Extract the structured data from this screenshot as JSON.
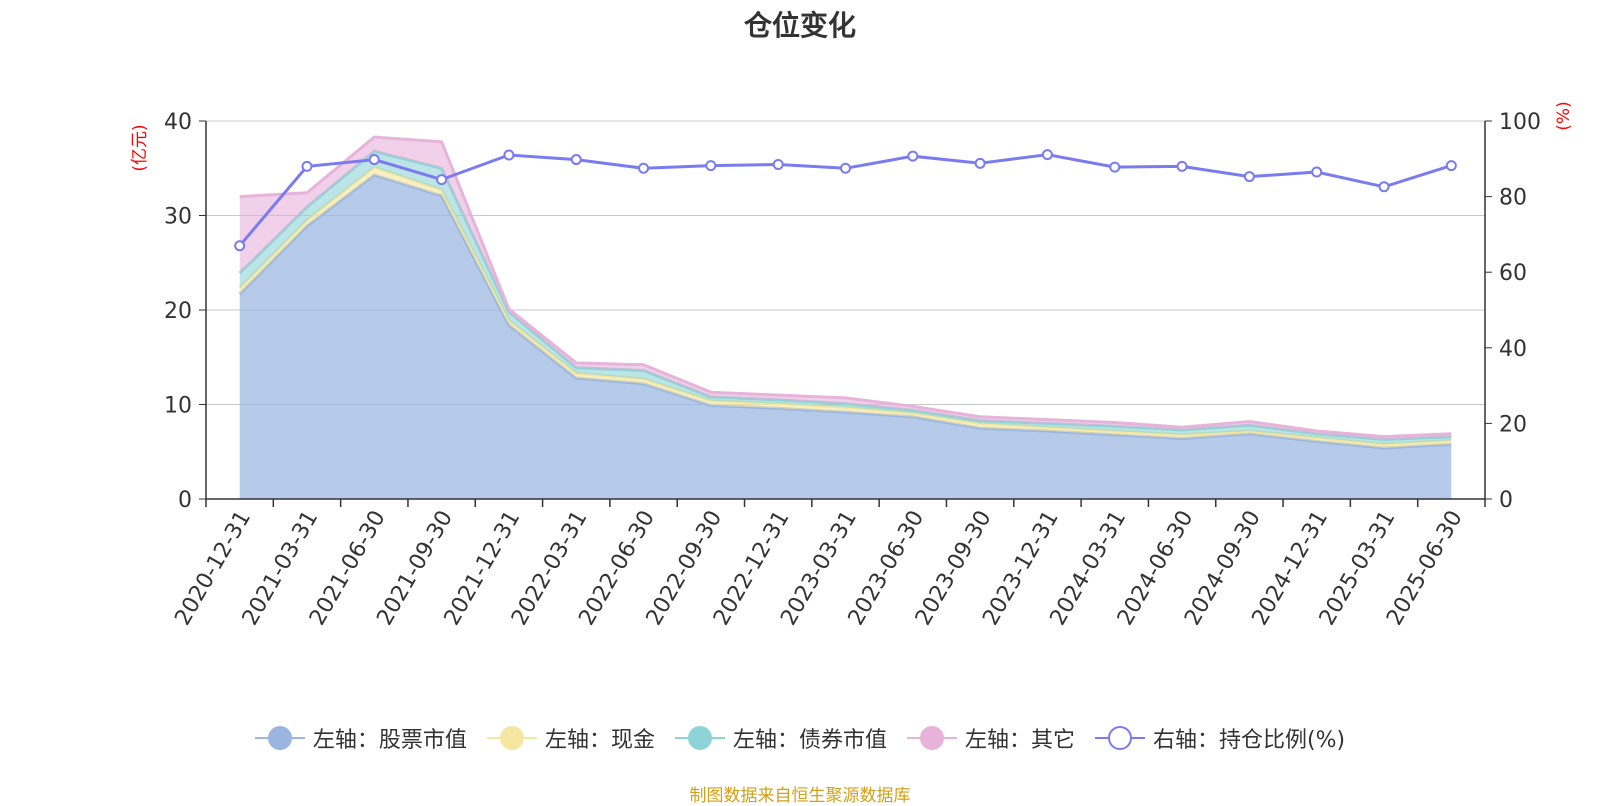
{
  "title": "仓位变化",
  "source_note": "制图数据来自恒生聚源数据库",
  "colors": {
    "stock": "#9ab6e0",
    "cash": "#f5e6a0",
    "bond": "#8ed3d6",
    "other": "#e7b3da",
    "ratio": "#7b7bf0",
    "axis_unit": "#ff0000",
    "grid": "#c8c8c8",
    "source": "#d4a017"
  },
  "chart_data": {
    "type": "area",
    "title": "仓位变化",
    "x": [
      "2020-12-31",
      "2021-03-31",
      "2021-06-30",
      "2021-09-30",
      "2021-12-31",
      "2022-03-31",
      "2022-06-30",
      "2022-09-30",
      "2022-12-31",
      "2023-03-31",
      "2023-06-30",
      "2023-09-30",
      "2023-12-31",
      "2024-03-31",
      "2024-06-30",
      "2024-09-30",
      "2024-12-31",
      "2025-03-31",
      "2025-06-30"
    ],
    "y_left": {
      "unit": "(亿元)",
      "range": [
        0,
        40
      ],
      "ticks": [
        0,
        10,
        20,
        30,
        40
      ]
    },
    "y_right": {
      "unit": "(%)",
      "range": [
        0,
        100
      ],
      "ticks": [
        0,
        20,
        40,
        60,
        80,
        100
      ]
    },
    "grid": true,
    "legend_position": "bottom",
    "stacked_series": [
      {
        "name": "左轴：股票市值",
        "axis": "left",
        "color_key": "stock",
        "values": [
          21.7,
          28.9,
          34.3,
          32.1,
          18.4,
          12.8,
          12.2,
          9.9,
          9.6,
          9.2,
          8.7,
          7.5,
          7.2,
          6.8,
          6.4,
          6.9,
          6.1,
          5.4,
          5.8
        ]
      },
      {
        "name": "左轴：现金",
        "axis": "left",
        "color_key": "cash",
        "values": [
          0.6,
          0.6,
          0.8,
          0.6,
          0.5,
          0.5,
          0.5,
          0.5,
          0.5,
          0.5,
          0.4,
          0.5,
          0.4,
          0.4,
          0.4,
          0.3,
          0.4,
          0.4,
          0.4
        ]
      },
      {
        "name": "左轴：债券市值",
        "axis": "left",
        "color_key": "bond",
        "values": [
          1.6,
          1.4,
          1.7,
          2.3,
          0.9,
          0.6,
          0.9,
          0.4,
          0.4,
          0.4,
          0.3,
          0.3,
          0.4,
          0.5,
          0.5,
          0.6,
          0.4,
          0.5,
          0.4
        ]
      },
      {
        "name": "左轴：其它",
        "axis": "left",
        "color_key": "other",
        "values": [
          8.1,
          1.5,
          1.5,
          2.8,
          0.3,
          0.5,
          0.6,
          0.5,
          0.5,
          0.6,
          0.4,
          0.4,
          0.4,
          0.4,
          0.3,
          0.4,
          0.3,
          0.3,
          0.3
        ]
      }
    ],
    "line_series": {
      "name": "右轴：持仓比例(%)",
      "axis": "right",
      "color_key": "ratio",
      "values": [
        67.0,
        88.0,
        89.8,
        84.5,
        91.0,
        89.8,
        87.5,
        88.2,
        88.5,
        87.5,
        90.7,
        88.8,
        91.1,
        87.8,
        88.0,
        85.3,
        86.5,
        82.6,
        88.2
      ]
    }
  }
}
